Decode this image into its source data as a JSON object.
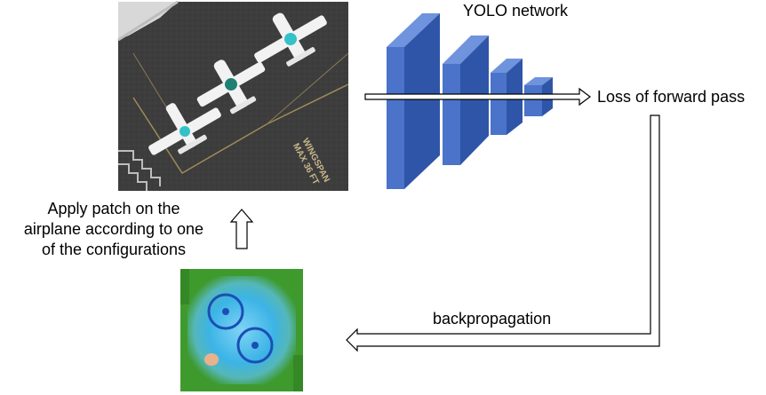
{
  "diagram": {
    "network_label": "YOLO network",
    "loss_label": "Loss of forward pass",
    "backprop_label": "backpropagation",
    "apply_label": [
      "Apply patch on the",
      "airplane according to one",
      "of the configurations"
    ],
    "aerial_painted_text": [
      "WINGSPAN",
      "MAX 36 FT"
    ],
    "colors": {
      "block_front": "#4a73c9",
      "block_side": "#2f55a8",
      "block_top": "#6f93dc",
      "tarmac": "#3a3a3a",
      "patch_bg": "#3cb4e6",
      "patch_border": "#3f9a2e"
    }
  }
}
